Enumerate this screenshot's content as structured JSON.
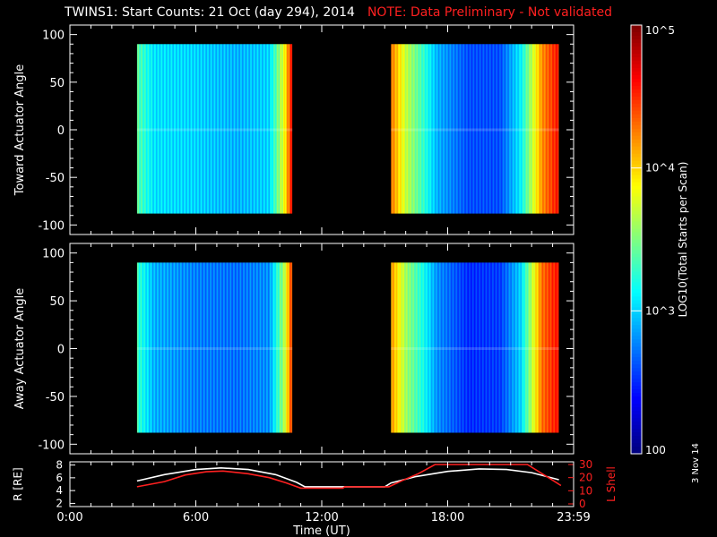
{
  "title": {
    "main": "TWINS1: Start Counts: 21 Oct (day 294), 2014",
    "note": "NOTE: Data Preliminary - Not validated"
  },
  "stamp": "3 Nov 14",
  "colors": {
    "background": "#000000",
    "axis": "#ffffff",
    "note": "#ff2020",
    "r_line": "#ffffff",
    "l_line": "#ff2020"
  },
  "chart_data": [
    {
      "id": "toward",
      "type": "heatmap",
      "ylabel": "Toward Actuator Angle",
      "ylim": [
        -110,
        110
      ],
      "yticks": [
        100,
        50,
        0,
        -50,
        -100
      ],
      "x_hours": [
        0,
        24
      ],
      "data_blocks": [
        {
          "start_hour": 3.2,
          "end_hour": 10.6,
          "angle_range": [
            -88,
            90
          ]
        },
        {
          "start_hour": 15.3,
          "end_hour": 23.3,
          "angle_range": [
            -88,
            90
          ]
        }
      ],
      "log10_counts_profile": [
        {
          "hour": 3.2,
          "value": 3.4
        },
        {
          "hour": 4.0,
          "value": 3.05
        },
        {
          "hour": 6.0,
          "value": 3.0
        },
        {
          "hour": 8.0,
          "value": 2.9
        },
        {
          "hour": 9.5,
          "value": 3.0
        },
        {
          "hour": 10.2,
          "value": 3.8
        },
        {
          "hour": 10.6,
          "value": 4.6
        },
        {
          "hour": 15.3,
          "value": 4.3
        },
        {
          "hour": 16.0,
          "value": 3.7
        },
        {
          "hour": 16.8,
          "value": 3.3
        },
        {
          "hour": 17.5,
          "value": 2.9
        },
        {
          "hour": 19.0,
          "value": 2.6
        },
        {
          "hour": 20.5,
          "value": 2.6
        },
        {
          "hour": 21.5,
          "value": 3.1
        },
        {
          "hour": 22.5,
          "value": 4.2
        },
        {
          "hour": 23.3,
          "value": 4.6
        }
      ]
    },
    {
      "id": "away",
      "type": "heatmap",
      "ylabel": "Away Actuator Angle",
      "ylim": [
        -110,
        110
      ],
      "yticks": [
        100,
        50,
        0,
        -50,
        -100
      ],
      "x_hours": [
        0,
        24
      ],
      "data_blocks": [
        {
          "start_hour": 3.2,
          "end_hour": 10.6,
          "angle_range": [
            -88,
            90
          ]
        },
        {
          "start_hour": 15.3,
          "end_hour": 23.3,
          "angle_range": [
            -88,
            90
          ]
        }
      ],
      "log10_counts_profile": [
        {
          "hour": 3.2,
          "value": 3.3
        },
        {
          "hour": 4.0,
          "value": 2.9
        },
        {
          "hour": 6.0,
          "value": 2.75
        },
        {
          "hour": 8.0,
          "value": 2.7
        },
        {
          "hour": 9.5,
          "value": 2.8
        },
        {
          "hour": 10.2,
          "value": 3.6
        },
        {
          "hour": 10.6,
          "value": 4.5
        },
        {
          "hour": 15.3,
          "value": 4.2
        },
        {
          "hour": 16.0,
          "value": 3.6
        },
        {
          "hour": 16.8,
          "value": 3.2
        },
        {
          "hour": 17.5,
          "value": 2.8
        },
        {
          "hour": 19.0,
          "value": 2.5
        },
        {
          "hour": 20.5,
          "value": 2.55
        },
        {
          "hour": 21.5,
          "value": 3.0
        },
        {
          "hour": 22.5,
          "value": 4.3
        },
        {
          "hour": 23.3,
          "value": 4.6
        }
      ]
    },
    {
      "id": "orbit",
      "type": "line",
      "ylabel": "R [RE]",
      "ylabel_right": "L Shell",
      "ylim": [
        1.5,
        8.5
      ],
      "yticks": [
        8,
        6,
        4,
        2
      ],
      "ylim_right": [
        0,
        30
      ],
      "yticks_right": [
        30,
        20,
        10,
        0
      ],
      "series": [
        {
          "name": "R",
          "color": "#ffffff",
          "points": [
            [
              3.2,
              5.5
            ],
            [
              4.5,
              6.5
            ],
            [
              6.0,
              7.3
            ],
            [
              7.2,
              7.55
            ],
            [
              8.5,
              7.3
            ],
            [
              9.8,
              6.5
            ],
            [
              10.8,
              5.3
            ],
            [
              11.2,
              4.6
            ],
            [
              15.0,
              4.6
            ],
            [
              15.3,
              5.2
            ],
            [
              16.5,
              6.2
            ],
            [
              18.0,
              7.0
            ],
            [
              19.5,
              7.4
            ],
            [
              20.8,
              7.3
            ],
            [
              22.0,
              6.8
            ],
            [
              23.3,
              5.7
            ]
          ]
        },
        {
          "name": "L Shell",
          "color": "#ff2020",
          "axis": "right",
          "points": [
            [
              3.2,
              13
            ],
            [
              4.5,
              17
            ],
            [
              5.5,
              22
            ],
            [
              6.5,
              24.5
            ],
            [
              7.3,
              25
            ],
            [
              8.5,
              23
            ],
            [
              9.5,
              20
            ],
            [
              10.3,
              16
            ],
            [
              11.0,
              12
            ],
            [
              13.0,
              12
            ],
            [
              13.1,
              13
            ],
            [
              15.2,
              13
            ],
            [
              15.8,
              17.5
            ],
            [
              16.6,
              23
            ],
            [
              17.4,
              30
            ],
            [
              21.8,
              30
            ],
            [
              22.5,
              23
            ],
            [
              23.0,
              18
            ],
            [
              23.4,
              14
            ]
          ]
        }
      ]
    }
  ],
  "time_axis": {
    "label": "Time (UT)",
    "ticks": [
      {
        "hour": 0,
        "label": "0:00"
      },
      {
        "hour": 6,
        "label": "6:00"
      },
      {
        "hour": 12,
        "label": "12:00"
      },
      {
        "hour": 18,
        "label": "18:00"
      },
      {
        "hour": 24,
        "label": "23:59"
      }
    ]
  },
  "colorbar": {
    "label": "LOG10(Total Starts per Scan)",
    "min_log": 2,
    "max_log": 5,
    "ticks": [
      {
        "log": 5,
        "label": "10^5"
      },
      {
        "log": 4,
        "label": "10^4"
      },
      {
        "log": 3,
        "label": "10^3"
      },
      {
        "log": 2,
        "label": "100"
      }
    ]
  }
}
